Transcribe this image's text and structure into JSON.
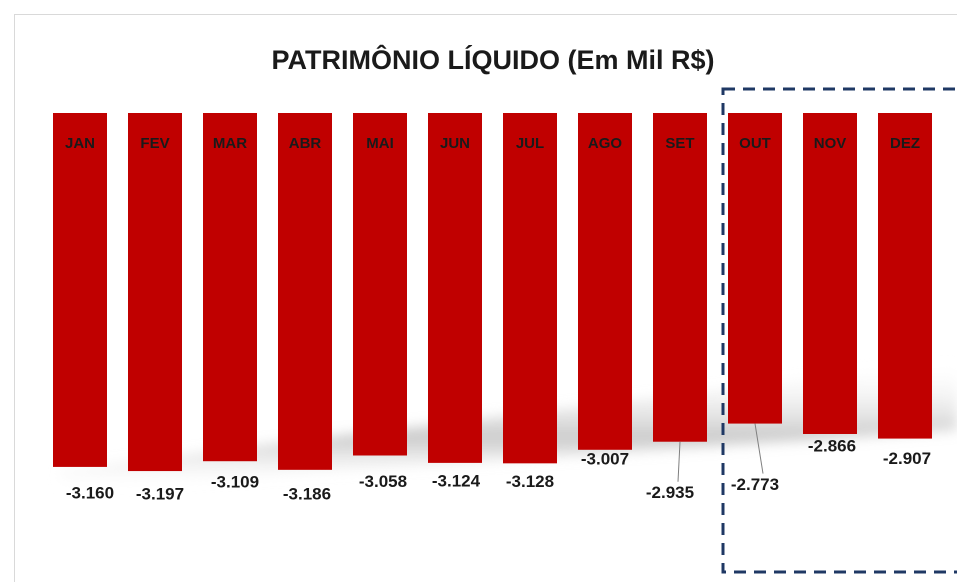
{
  "chart_data": {
    "type": "bar",
    "title": "PATRIMÔNIO LÍQUIDO (Em Mil R$)",
    "categories": [
      "JAN",
      "FEV",
      "MAR",
      "ABR",
      "MAI",
      "JUN",
      "JUL",
      "AGO",
      "SET",
      "OUT",
      "NOV",
      "DEZ"
    ],
    "values": [
      -3160,
      -3197,
      -3109,
      -3186,
      -3058,
      -3124,
      -3128,
      -3007,
      -2935,
      -2773,
      -2866,
      -2907
    ],
    "value_labels": [
      "-3.160",
      "-3.197",
      "-3.109",
      "-3.186",
      "-3.058",
      "-3.124",
      "-3.128",
      "-3.007",
      "-2.935",
      "-2.773",
      "-2.866",
      "-2.907"
    ],
    "color": "#c00000"
  }
}
